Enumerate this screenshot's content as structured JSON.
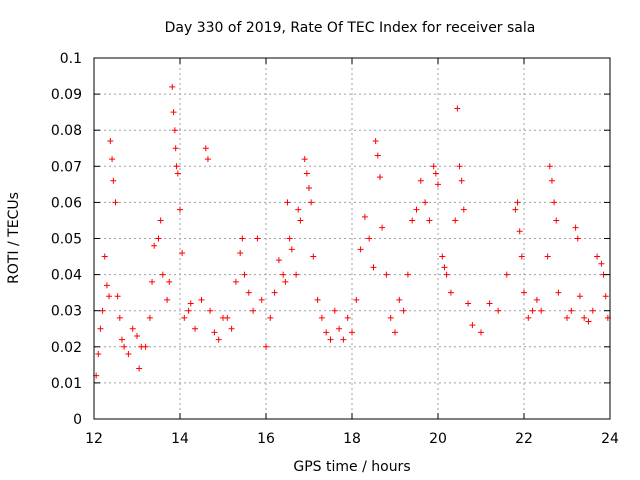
{
  "chart_data": {
    "type": "scatter",
    "title": "Day 330 of 2019, Rate Of TEC Index for receiver sala",
    "xlabel": "GPS time / hours",
    "ylabel": "ROTI / TECUs",
    "xlim": [
      12,
      24
    ],
    "ylim": [
      0,
      0.1
    ],
    "x_ticks": [
      12,
      14,
      16,
      18,
      20,
      22,
      24
    ],
    "x_tick_labels": [
      "12",
      "14",
      "16",
      "18",
      "20",
      "22",
      "24"
    ],
    "y_ticks": [
      0,
      0.01,
      0.02,
      0.03,
      0.04,
      0.05,
      0.06,
      0.07,
      0.08,
      0.09,
      0.1
    ],
    "y_tick_labels": [
      "0",
      "0.01",
      "0.02",
      "0.03",
      "0.04",
      "0.05",
      "0.06",
      "0.07",
      "0.08",
      "0.09",
      "0.1"
    ],
    "grid": true,
    "marker": "+",
    "color": "#ff0000",
    "series": [
      {
        "name": "ROTI",
        "points": [
          [
            12.05,
            0.012
          ],
          [
            12.1,
            0.018
          ],
          [
            12.15,
            0.025
          ],
          [
            12.2,
            0.03
          ],
          [
            12.25,
            0.045
          ],
          [
            12.3,
            0.037
          ],
          [
            12.35,
            0.034
          ],
          [
            12.38,
            0.077
          ],
          [
            12.42,
            0.072
          ],
          [
            12.45,
            0.066
          ],
          [
            12.5,
            0.06
          ],
          [
            12.55,
            0.034
          ],
          [
            12.6,
            0.028
          ],
          [
            12.65,
            0.022
          ],
          [
            12.7,
            0.02
          ],
          [
            12.8,
            0.018
          ],
          [
            12.9,
            0.025
          ],
          [
            13.0,
            0.023
          ],
          [
            13.05,
            0.014
          ],
          [
            13.1,
            0.02
          ],
          [
            13.2,
            0.02
          ],
          [
            13.3,
            0.028
          ],
          [
            13.35,
            0.038
          ],
          [
            13.4,
            0.048
          ],
          [
            13.5,
            0.05
          ],
          [
            13.55,
            0.055
          ],
          [
            13.6,
            0.04
          ],
          [
            13.7,
            0.033
          ],
          [
            13.75,
            0.038
          ],
          [
            13.82,
            0.092
          ],
          [
            13.85,
            0.085
          ],
          [
            13.88,
            0.08
          ],
          [
            13.9,
            0.075
          ],
          [
            13.92,
            0.07
          ],
          [
            13.95,
            0.068
          ],
          [
            14.0,
            0.058
          ],
          [
            14.05,
            0.046
          ],
          [
            14.1,
            0.028
          ],
          [
            14.2,
            0.03
          ],
          [
            14.25,
            0.032
          ],
          [
            14.35,
            0.025
          ],
          [
            14.5,
            0.033
          ],
          [
            14.6,
            0.075
          ],
          [
            14.65,
            0.072
          ],
          [
            14.7,
            0.03
          ],
          [
            14.8,
            0.024
          ],
          [
            14.9,
            0.022
          ],
          [
            15.0,
            0.028
          ],
          [
            15.1,
            0.028
          ],
          [
            15.2,
            0.025
          ],
          [
            15.3,
            0.038
          ],
          [
            15.4,
            0.046
          ],
          [
            15.45,
            0.05
          ],
          [
            15.5,
            0.04
          ],
          [
            15.6,
            0.035
          ],
          [
            15.7,
            0.03
          ],
          [
            15.8,
            0.05
          ],
          [
            15.9,
            0.033
          ],
          [
            16.0,
            0.02
          ],
          [
            16.1,
            0.028
          ],
          [
            16.2,
            0.035
          ],
          [
            16.3,
            0.044
          ],
          [
            16.4,
            0.04
          ],
          [
            16.45,
            0.038
          ],
          [
            16.5,
            0.06
          ],
          [
            16.55,
            0.05
          ],
          [
            16.6,
            0.047
          ],
          [
            16.7,
            0.04
          ],
          [
            16.75,
            0.058
          ],
          [
            16.8,
            0.055
          ],
          [
            16.9,
            0.072
          ],
          [
            16.95,
            0.068
          ],
          [
            17.0,
            0.064
          ],
          [
            17.05,
            0.06
          ],
          [
            17.1,
            0.045
          ],
          [
            17.2,
            0.033
          ],
          [
            17.3,
            0.028
          ],
          [
            17.4,
            0.024
          ],
          [
            17.5,
            0.022
          ],
          [
            17.6,
            0.03
          ],
          [
            17.7,
            0.025
          ],
          [
            17.8,
            0.022
          ],
          [
            17.9,
            0.028
          ],
          [
            18.0,
            0.024
          ],
          [
            18.1,
            0.033
          ],
          [
            18.2,
            0.047
          ],
          [
            18.3,
            0.056
          ],
          [
            18.4,
            0.05
          ],
          [
            18.5,
            0.042
          ],
          [
            18.55,
            0.077
          ],
          [
            18.6,
            0.073
          ],
          [
            18.65,
            0.067
          ],
          [
            18.7,
            0.053
          ],
          [
            18.8,
            0.04
          ],
          [
            18.9,
            0.028
          ],
          [
            19.0,
            0.024
          ],
          [
            19.1,
            0.033
          ],
          [
            19.2,
            0.03
          ],
          [
            19.3,
            0.04
          ],
          [
            19.4,
            0.055
          ],
          [
            19.5,
            0.058
          ],
          [
            19.6,
            0.066
          ],
          [
            19.7,
            0.06
          ],
          [
            19.8,
            0.055
          ],
          [
            19.9,
            0.07
          ],
          [
            19.95,
            0.068
          ],
          [
            20.0,
            0.065
          ],
          [
            20.1,
            0.045
          ],
          [
            20.15,
            0.042
          ],
          [
            20.2,
            0.04
          ],
          [
            20.3,
            0.035
          ],
          [
            20.4,
            0.055
          ],
          [
            20.45,
            0.086
          ],
          [
            20.5,
            0.07
          ],
          [
            20.55,
            0.066
          ],
          [
            20.6,
            0.058
          ],
          [
            20.7,
            0.032
          ],
          [
            20.8,
            0.026
          ],
          [
            21.0,
            0.024
          ],
          [
            21.2,
            0.032
          ],
          [
            21.4,
            0.03
          ],
          [
            21.6,
            0.04
          ],
          [
            21.8,
            0.058
          ],
          [
            21.85,
            0.06
          ],
          [
            21.9,
            0.052
          ],
          [
            21.95,
            0.045
          ],
          [
            22.0,
            0.035
          ],
          [
            22.1,
            0.028
          ],
          [
            22.2,
            0.03
          ],
          [
            22.3,
            0.033
          ],
          [
            22.4,
            0.03
          ],
          [
            22.55,
            0.045
          ],
          [
            22.6,
            0.07
          ],
          [
            22.65,
            0.066
          ],
          [
            22.7,
            0.06
          ],
          [
            22.75,
            0.055
          ],
          [
            22.8,
            0.035
          ],
          [
            23.0,
            0.028
          ],
          [
            23.1,
            0.03
          ],
          [
            23.2,
            0.053
          ],
          [
            23.25,
            0.05
          ],
          [
            23.3,
            0.034
          ],
          [
            23.4,
            0.028
          ],
          [
            23.5,
            0.027
          ],
          [
            23.6,
            0.03
          ],
          [
            23.7,
            0.045
          ],
          [
            23.8,
            0.043
          ],
          [
            23.85,
            0.04
          ],
          [
            23.9,
            0.034
          ],
          [
            23.95,
            0.028
          ]
        ]
      }
    ]
  }
}
